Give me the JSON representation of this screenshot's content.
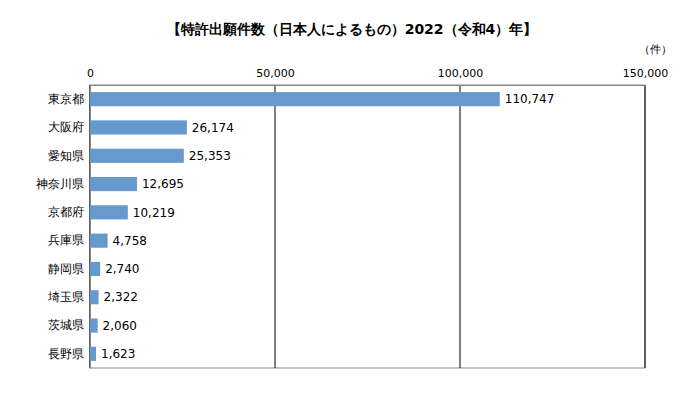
{
  "chart_data": {
    "type": "bar",
    "orientation": "horizontal",
    "title": "【特許出願件数（日本人によるもの）2022（令和4）年】",
    "xlabel": "（件）",
    "categories": [
      "東京都",
      "大阪府",
      "愛知県",
      "神奈川県",
      "京都府",
      "兵庫県",
      "静岡県",
      "埼玉県",
      "茨城県",
      "長野県"
    ],
    "values": [
      110747,
      26174,
      25353,
      12695,
      10219,
      4758,
      2740,
      2322,
      2060,
      1623
    ],
    "value_labels": [
      "110,747",
      "26,174",
      "25,353",
      "12,695",
      "10,219",
      "4,758",
      "2,740",
      "2,322",
      "2,060",
      "1,623"
    ],
    "data_labels": true,
    "color": "#6699cc",
    "xlim": [
      0,
      150000
    ],
    "xticks": [
      0,
      {
        "value": 50000,
        "label": "50,000"
      },
      {
        "value": 100000,
        "label": "100,000"
      },
      {
        "value": 150000,
        "label": "150,000"
      }
    ],
    "grid": true
  }
}
